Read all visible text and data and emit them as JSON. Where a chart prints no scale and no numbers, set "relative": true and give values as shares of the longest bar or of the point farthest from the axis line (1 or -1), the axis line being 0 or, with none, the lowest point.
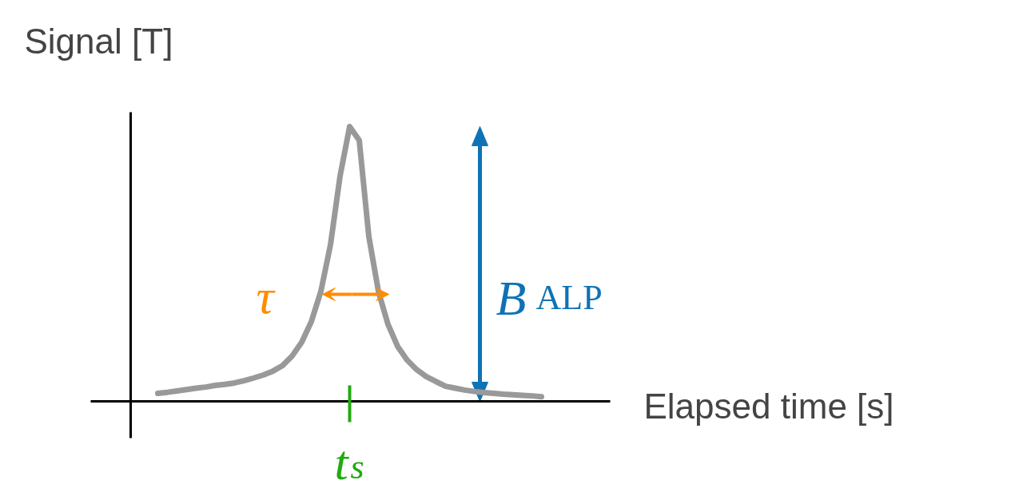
{
  "chart_data": {
    "type": "line",
    "relative": true,
    "xlabel": "Elapsed time [s]",
    "ylabel": "Signal [T]",
    "categories": [
      null,
      null,
      null,
      null,
      null,
      null,
      null,
      null,
      null,
      null,
      null,
      null,
      null,
      null,
      null,
      null,
      null,
      null,
      null,
      null,
      null,
      null,
      null,
      null,
      null,
      null,
      null,
      null,
      null,
      null,
      null,
      null,
      null,
      null,
      null,
      null,
      null,
      null,
      null,
      null,
      null
    ],
    "series": [
      {
        "color": "#999999",
        "values": [
          0.029,
          0.033,
          0.038,
          0.043,
          0.048,
          0.052,
          0.058,
          0.062,
          0.067,
          0.075,
          0.085,
          0.096,
          0.11,
          0.13,
          0.165,
          0.215,
          0.29,
          0.4,
          0.57,
          0.82,
          1.0,
          0.95,
          0.6,
          0.4,
          0.28,
          0.2,
          0.15,
          0.115,
          0.09,
          0.072,
          0.055,
          0.048,
          0.041,
          0.036,
          0.032,
          0.029,
          0.026,
          0.024,
          0.022,
          0.02,
          0.017
        ]
      }
    ],
    "annotations": [
      "τ",
      "B$_{ALP}$",
      "t$_{s}$"
    ]
  }
}
